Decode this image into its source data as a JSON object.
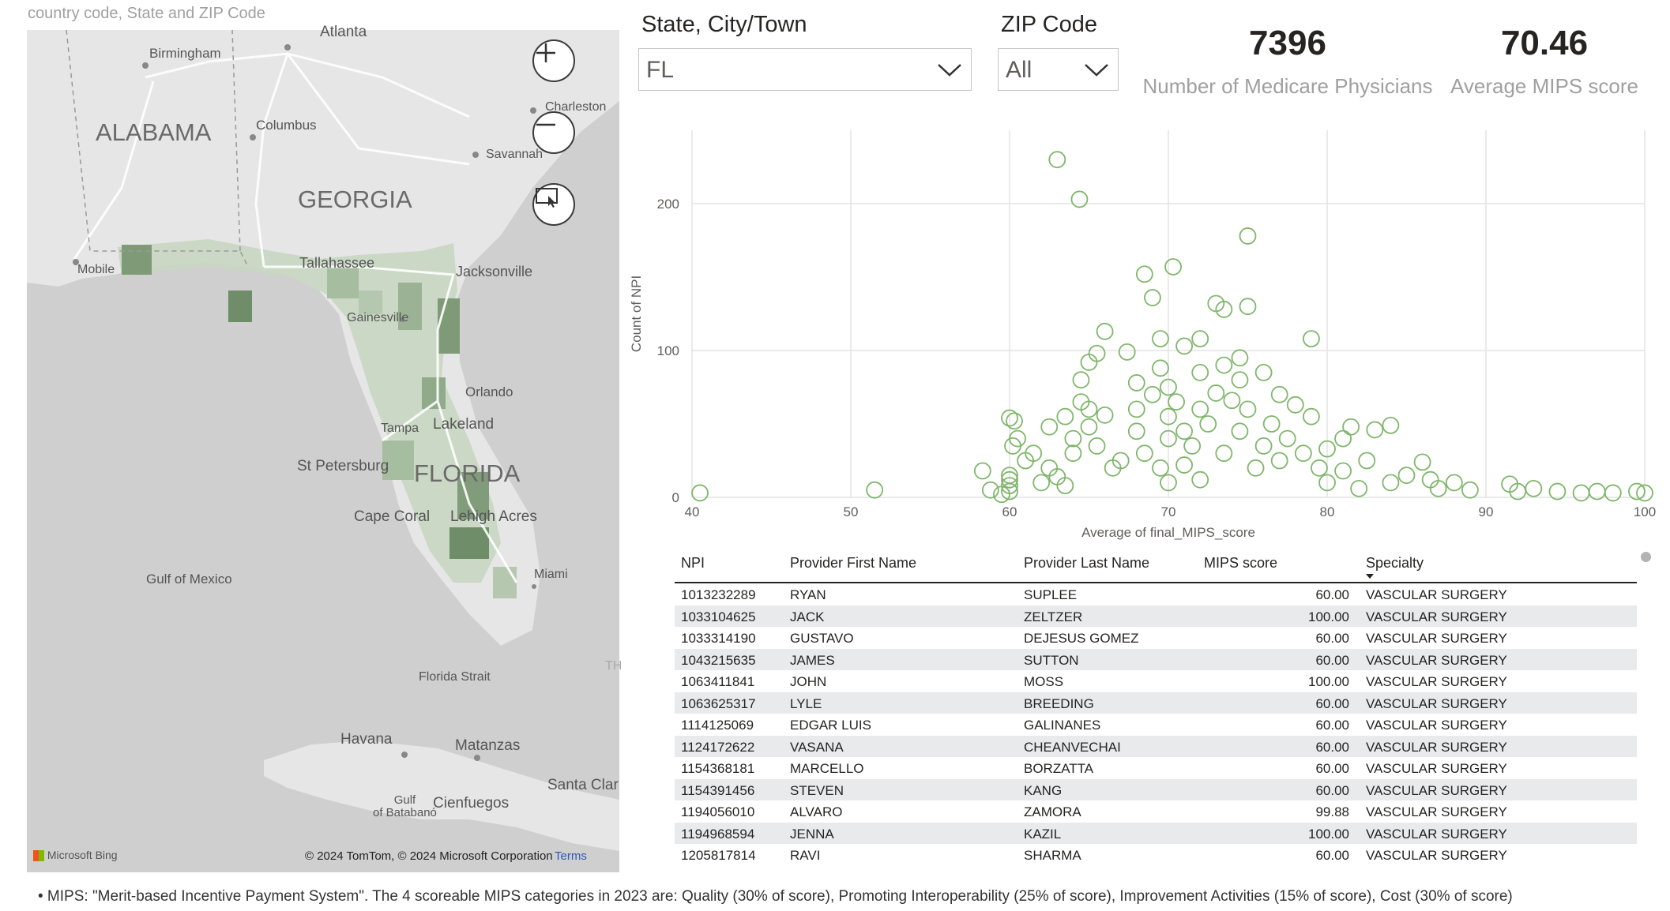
{
  "map": {
    "caption": "country code, State and ZIP Code",
    "labels": {
      "alabama": "ALABAMA",
      "georgia": "GEORGIA",
      "florida": "FLORIDA",
      "atlanta": "Atlanta",
      "birmingham": "Birmingham",
      "columbus": "Columbus",
      "charleston": "Charleston",
      "savannah": "Savannah",
      "mobile": "Mobile",
      "tallahassee": "Tallahassee",
      "jacksonville": "Jacksonville",
      "gainesville": "Gainesville",
      "orlando": "Orlando",
      "tampa": "Tampa",
      "lakeland": "Lakeland",
      "st_petersburg": "St Petersburg",
      "cape_coral": "Cape Coral",
      "lehigh_acres": "Lehigh Acres",
      "miami": "Miami",
      "gulf_of_mexico": "Gulf of Mexico",
      "florida_strait": "Florida Strait",
      "havana": "Havana",
      "matanzas": "Matanzas",
      "santa_clara": "Santa Clar",
      "gulf_batabano": "Gulf\nof Batabanó",
      "cienfuegos": "Cienfuegos",
      "th": "TH"
    },
    "bing": "Microsoft Bing",
    "copyright": "© 2024 TomTom, © 2024 Microsoft Corporation",
    "terms": "Terms",
    "controls": [
      "zoom-in",
      "zoom-out",
      "screen-select"
    ]
  },
  "filters": {
    "state_city": {
      "title": "State, City/Town",
      "value": "FL"
    },
    "zip": {
      "title": "ZIP Code",
      "value": "All"
    }
  },
  "kpis": [
    {
      "value": "7396",
      "label": "Number of Medicare Physicians"
    },
    {
      "value": "70.46",
      "label": "Average MIPS score"
    }
  ],
  "chart_data": {
    "type": "scatter",
    "xlabel": "Average of final_MIPS_score",
    "ylabel": "Count of NPI",
    "xlim": [
      40,
      100
    ],
    "ylim": [
      0,
      250
    ],
    "x_ticks": [
      "40",
      "50",
      "60",
      "70",
      "80",
      "90",
      "100"
    ],
    "y_ticks": [
      "0",
      "100",
      "200"
    ],
    "grid": true,
    "marker": "hollow-circle",
    "color": "#7fb66a",
    "points": [
      [
        40.5,
        3
      ],
      [
        51.5,
        5
      ],
      [
        58.3,
        18
      ],
      [
        58.8,
        5
      ],
      [
        59.5,
        2
      ],
      [
        60,
        4
      ],
      [
        60,
        8
      ],
      [
        60,
        12
      ],
      [
        60,
        15
      ],
      [
        60,
        54
      ],
      [
        60.2,
        35
      ],
      [
        60.5,
        40
      ],
      [
        60.3,
        52
      ],
      [
        61,
        25
      ],
      [
        61.5,
        30
      ],
      [
        62,
        10
      ],
      [
        62.5,
        20
      ],
      [
        62.5,
        48
      ],
      [
        63,
        14
      ],
      [
        63.5,
        8
      ],
      [
        63,
        230
      ],
      [
        64.4,
        203
      ],
      [
        63.5,
        55
      ],
      [
        64,
        40
      ],
      [
        64,
        30
      ],
      [
        64.5,
        80
      ],
      [
        64.5,
        65
      ],
      [
        65,
        92
      ],
      [
        65,
        60
      ],
      [
        65,
        48
      ],
      [
        65.5,
        98
      ],
      [
        65.5,
        35
      ],
      [
        66,
        113
      ],
      [
        66,
        56
      ],
      [
        66.5,
        20
      ],
      [
        67,
        25
      ],
      [
        67.4,
        99
      ],
      [
        68,
        78
      ],
      [
        68,
        60
      ],
      [
        68,
        45
      ],
      [
        68.5,
        152
      ],
      [
        68.5,
        30
      ],
      [
        69,
        136
      ],
      [
        69,
        70
      ],
      [
        69.5,
        88
      ],
      [
        69.5,
        108
      ],
      [
        69.5,
        20
      ],
      [
        70,
        75
      ],
      [
        70,
        55
      ],
      [
        70,
        40
      ],
      [
        70,
        10
      ],
      [
        70.3,
        157
      ],
      [
        70.5,
        65
      ],
      [
        71,
        103
      ],
      [
        71,
        45
      ],
      [
        71,
        22
      ],
      [
        71.5,
        35
      ],
      [
        72,
        108
      ],
      [
        72,
        85
      ],
      [
        72,
        60
      ],
      [
        72,
        12
      ],
      [
        72.5,
        50
      ],
      [
        73,
        71
      ],
      [
        73,
        132
      ],
      [
        73.5,
        128
      ],
      [
        73.5,
        90
      ],
      [
        73.5,
        30
      ],
      [
        74,
        66
      ],
      [
        74.5,
        80
      ],
      [
        74.5,
        95
      ],
      [
        74.5,
        45
      ],
      [
        75,
        130
      ],
      [
        75,
        178
      ],
      [
        75,
        60
      ],
      [
        75.5,
        20
      ],
      [
        76,
        85
      ],
      [
        76,
        35
      ],
      [
        76.5,
        50
      ],
      [
        77,
        70
      ],
      [
        77,
        25
      ],
      [
        77.5,
        40
      ],
      [
        78,
        63
      ],
      [
        78.5,
        30
      ],
      [
        79,
        108
      ],
      [
        79,
        55
      ],
      [
        79.5,
        20
      ],
      [
        80,
        33
      ],
      [
        80,
        10
      ],
      [
        81,
        40
      ],
      [
        81,
        18
      ],
      [
        81.5,
        48
      ],
      [
        82,
        6
      ],
      [
        82.5,
        25
      ],
      [
        83,
        46
      ],
      [
        84,
        49
      ],
      [
        84,
        10
      ],
      [
        85,
        15
      ],
      [
        86,
        24
      ],
      [
        86.5,
        12
      ],
      [
        87,
        6
      ],
      [
        88,
        10
      ],
      [
        89,
        5
      ],
      [
        91.5,
        9
      ],
      [
        92,
        4
      ],
      [
        93,
        6
      ],
      [
        94.5,
        4
      ],
      [
        96,
        3
      ],
      [
        97,
        4
      ],
      [
        98,
        3
      ],
      [
        99.5,
        4
      ],
      [
        100,
        3
      ]
    ]
  },
  "table": {
    "columns": [
      "NPI",
      "Provider First Name",
      "Provider Last Name",
      "MIPS score",
      "Specialty"
    ],
    "rows": [
      [
        "1013232289",
        "RYAN",
        "SUPLEE",
        "60.00",
        "VASCULAR SURGERY"
      ],
      [
        "1033104625",
        "JACK",
        "ZELTZER",
        "100.00",
        "VASCULAR SURGERY"
      ],
      [
        "1033314190",
        "GUSTAVO",
        "DEJESUS GOMEZ",
        "60.00",
        "VASCULAR SURGERY"
      ],
      [
        "1043215635",
        "JAMES",
        "SUTTON",
        "60.00",
        "VASCULAR SURGERY"
      ],
      [
        "1063411841",
        "JOHN",
        "MOSS",
        "100.00",
        "VASCULAR SURGERY"
      ],
      [
        "1063625317",
        "LYLE",
        "BREEDING",
        "60.00",
        "VASCULAR SURGERY"
      ],
      [
        "1114125069",
        "EDGAR LUIS",
        "GALINANES",
        "60.00",
        "VASCULAR SURGERY"
      ],
      [
        "1124172622",
        "VASANA",
        "CHEANVECHAI",
        "60.00",
        "VASCULAR SURGERY"
      ],
      [
        "1154368181",
        "MARCELLO",
        "BORZATTA",
        "60.00",
        "VASCULAR SURGERY"
      ],
      [
        "1154391456",
        "STEVEN",
        "KANG",
        "60.00",
        "VASCULAR SURGERY"
      ],
      [
        "1194056010",
        "ALVARO",
        "ZAMORA",
        "99.88",
        "VASCULAR SURGERY"
      ],
      [
        "1194968594",
        "JENNA",
        "KAZIL",
        "100.00",
        "VASCULAR SURGERY"
      ],
      [
        "1205817814",
        "RAVI",
        "SHARMA",
        "60.00",
        "VASCULAR SURGERY"
      ]
    ]
  },
  "footnote": "• MIPS:   \"Merit-based Incentive Payment System\". The 4 scoreable MIPS categories in 2023 are: Quality (30% of score), Promoting Interoperability (25% of score), Improvement Activities (15% of score), Cost (30% of score)"
}
